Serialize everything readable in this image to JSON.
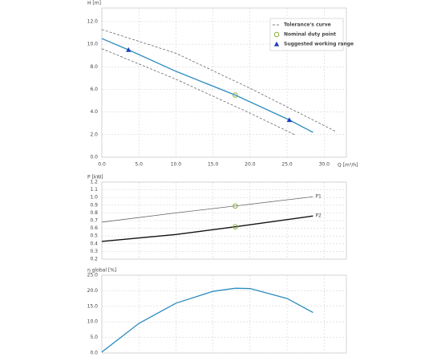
{
  "chart_data": [
    {
      "type": "line",
      "ylabel": "H [m]",
      "xlabel": "Q [m³/h]",
      "xlim": [
        0,
        33
      ],
      "ylim": [
        0,
        13.2
      ],
      "xticks": [
        {
          "value": 0,
          "label": "0.0"
        },
        {
          "value": 5,
          "label": "5.0"
        },
        {
          "value": 10,
          "label": "10.0"
        },
        {
          "value": 15,
          "label": "15.0"
        },
        {
          "value": 20,
          "label": "20.0"
        },
        {
          "value": 25,
          "label": "25.0"
        },
        {
          "value": 30,
          "label": "30.0"
        }
      ],
      "yticks": [
        {
          "value": 0,
          "label": "0.0"
        },
        {
          "value": 2,
          "label": "2.0"
        },
        {
          "value": 4,
          "label": "4.0"
        },
        {
          "value": 6,
          "label": "6.0"
        },
        {
          "value": 8,
          "label": "8.0"
        },
        {
          "value": 10,
          "label": "10.0"
        },
        {
          "value": 12,
          "label": "12.0"
        }
      ],
      "grid": true,
      "legend": "top-right",
      "series": [
        {
          "color": "#2b8cbe",
          "line_width": 1.3,
          "x": [
            0,
            3.6,
            10,
            18,
            25.3,
            28.5
          ],
          "values": [
            10.5,
            9.5,
            7.6,
            5.5,
            3.3,
            2.2
          ]
        },
        {
          "name": "Tolerance's curve",
          "color": "#555555",
          "line_width": 0.7,
          "line_style": "dashed",
          "x": [
            0,
            10,
            20,
            31.5,
            null,
            0,
            10,
            20,
            26
          ],
          "values": [
            11.3,
            9.2,
            6.1,
            2.3,
            null,
            9.6,
            6.9,
            3.9,
            2.0
          ]
        },
        {
          "name": "Nominal duty point",
          "color": "#8db040",
          "marker": "circle",
          "x": [
            18
          ],
          "values": [
            5.5
          ]
        },
        {
          "name": "Suggested working range",
          "color": "#1f3fbf",
          "marker": "triangle",
          "x": [
            3.6,
            25.3
          ],
          "values": [
            9.5,
            3.3
          ]
        }
      ]
    },
    {
      "type": "line",
      "ylabel": "P [kW]",
      "xlim": [
        0,
        33
      ],
      "ylim": [
        0.2,
        1.2
      ],
      "xtick_labels": false,
      "xticks": [
        0,
        5,
        10,
        15,
        20,
        25,
        30
      ],
      "yticks": [
        0.2,
        0.3,
        0.4,
        0.5,
        0.6,
        0.7,
        0.8,
        0.9,
        {
          "value": 1,
          "label": "1.0"
        },
        1.1,
        1.2
      ],
      "grid": true,
      "legend": "line-end",
      "series": [
        {
          "name": "P1",
          "color": "#666666",
          "line_width": 0.8,
          "x": [
            0,
            10,
            18,
            28.5
          ],
          "values": [
            0.68,
            0.8,
            0.89,
            1.01
          ]
        },
        {
          "name": "P2",
          "color": "#111111",
          "line_width": 1.4,
          "x": [
            0,
            10,
            18,
            28.5
          ],
          "values": [
            0.43,
            0.52,
            0.62,
            0.76
          ]
        },
        {
          "color": "#8db040",
          "marker": "circle",
          "x": [
            18,
            18
          ],
          "values": [
            0.89,
            0.62
          ]
        }
      ]
    },
    {
      "type": "line",
      "ylabel": "η global [%]",
      "xlim": [
        0,
        33
      ],
      "ylim": [
        0,
        25
      ],
      "xtick_labels": false,
      "xticks": [
        0,
        5,
        10,
        15,
        20,
        25,
        30
      ],
      "yticks": [
        {
          "value": 0,
          "label": "0.0"
        },
        {
          "value": 5,
          "label": "5.0"
        },
        {
          "value": 10,
          "label": "10.0"
        },
        {
          "value": 15,
          "label": "15.0"
        },
        {
          "value": 20,
          "label": "20.0"
        },
        {
          "value": 25,
          "label": "25.0"
        }
      ],
      "grid": true,
      "series": [
        {
          "color": "#2b8cbe",
          "line_width": 1.3,
          "x": [
            0,
            5,
            10,
            15,
            18,
            20,
            25,
            28.5
          ],
          "values": [
            0.3,
            9.5,
            16,
            19.8,
            20.8,
            20.7,
            17.5,
            13
          ]
        }
      ]
    }
  ]
}
